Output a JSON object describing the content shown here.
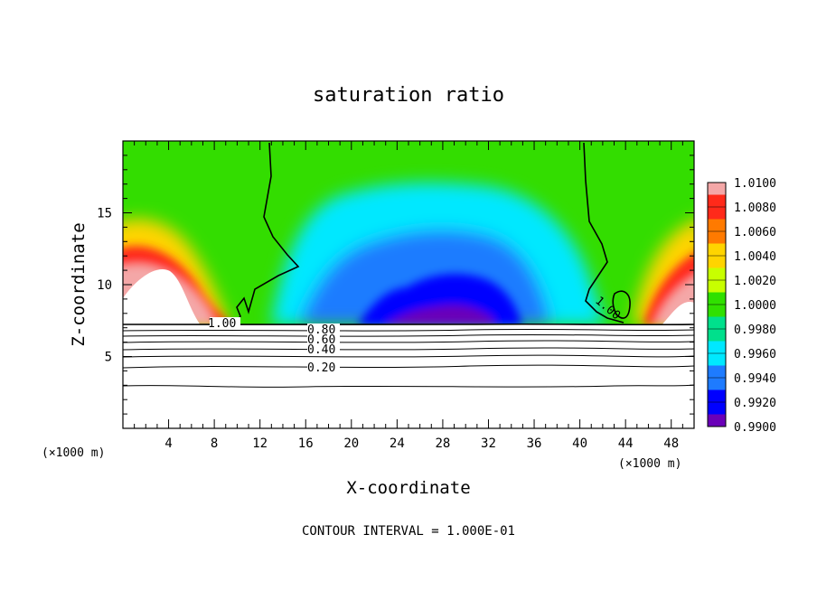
{
  "chart_data": {
    "type": "heatmap",
    "title": "saturation ratio",
    "xlabel": "X-coordinate",
    "ylabel": "Z-coordinate",
    "x_unit_label": "(×1000 m)",
    "xlim": [
      0,
      50
    ],
    "ylim": [
      0,
      20
    ],
    "x_ticks": [
      "4",
      "8",
      "12",
      "16",
      "20",
      "24",
      "28",
      "32",
      "36",
      "40",
      "44",
      "48"
    ],
    "y_ticks": [
      "5",
      "10",
      "15"
    ],
    "colorbar_labels": [
      "1.0100",
      "1.0080",
      "1.0060",
      "1.0040",
      "1.0020",
      "1.0000",
      "0.9980",
      "0.9960",
      "0.9940",
      "0.9920",
      "0.9900"
    ],
    "colorbar_colors": [
      "#f4a7a7",
      "#ff2a1a",
      "#ff7a00",
      "#ffd400",
      "#c8ff00",
      "#30e000",
      "#00e08c",
      "#00e8ff",
      "#1e7bff",
      "#0000ff",
      "#6a00b8"
    ],
    "contour_labels": [
      "1.00",
      "1.00",
      "0.80",
      "0.60",
      "0.40",
      "0.20"
    ],
    "contour_interval_text": "CONTOUR INTERVAL = 1.000E-01",
    "approx_fields": {
      "cloud_base_height": 7.2,
      "lower_saturation_contours_z": [
        3,
        4.3,
        5.2,
        5.8,
        6.3,
        6.7,
        7.0
      ],
      "supersaturated_zones_x": [
        [
          0,
          10
        ],
        [
          42,
          50
        ]
      ],
      "dry_core_x": [
        15,
        38
      ],
      "min_value": 0.99,
      "max_value": 1.01
    }
  }
}
